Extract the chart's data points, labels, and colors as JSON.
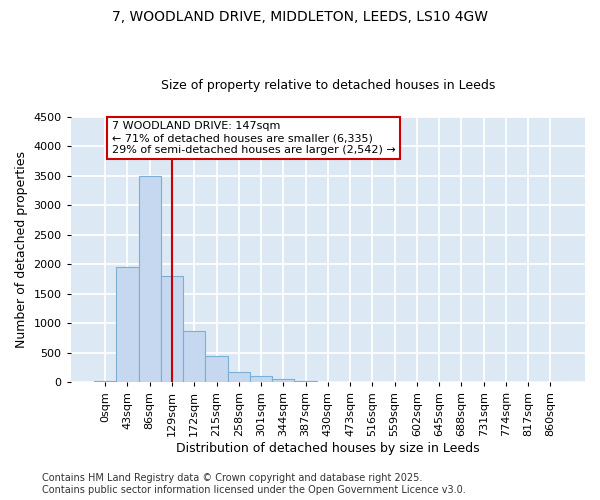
{
  "title_line1": "7, WOODLAND DRIVE, MIDDLETON, LEEDS, LS10 4GW",
  "title_line2": "Size of property relative to detached houses in Leeds",
  "xlabel": "Distribution of detached houses by size in Leeds",
  "ylabel": "Number of detached properties",
  "bar_color": "#c5d8f0",
  "bar_edge_color": "#7bafd4",
  "background_color": "#dce9f5",
  "grid_color": "#ffffff",
  "fig_background": "#ffffff",
  "categories": [
    "0sqm",
    "43sqm",
    "86sqm",
    "129sqm",
    "172sqm",
    "215sqm",
    "258sqm",
    "301sqm",
    "344sqm",
    "387sqm",
    "430sqm",
    "473sqm",
    "516sqm",
    "559sqm",
    "602sqm",
    "645sqm",
    "688sqm",
    "731sqm",
    "774sqm",
    "817sqm",
    "860sqm"
  ],
  "values": [
    30,
    1950,
    3500,
    1800,
    875,
    450,
    175,
    100,
    55,
    25,
    10,
    5,
    0,
    0,
    0,
    0,
    0,
    0,
    0,
    0,
    0
  ],
  "ylim": [
    0,
    4500
  ],
  "yticks": [
    0,
    500,
    1000,
    1500,
    2000,
    2500,
    3000,
    3500,
    4000,
    4500
  ],
  "vline_x": 3.0,
  "vline_color": "#cc0000",
  "annotation_line1": "7 WOODLAND DRIVE: 147sqm",
  "annotation_line2": "← 71% of detached houses are smaller (6,335)",
  "annotation_line3": "29% of semi-detached houses are larger (2,542) →",
  "footnote_line1": "Contains HM Land Registry data © Crown copyright and database right 2025.",
  "footnote_line2": "Contains public sector information licensed under the Open Government Licence v3.0.",
  "title_fontsize": 10,
  "subtitle_fontsize": 9,
  "axis_label_fontsize": 9,
  "tick_fontsize": 8,
  "annotation_fontsize": 8,
  "footnote_fontsize": 7
}
